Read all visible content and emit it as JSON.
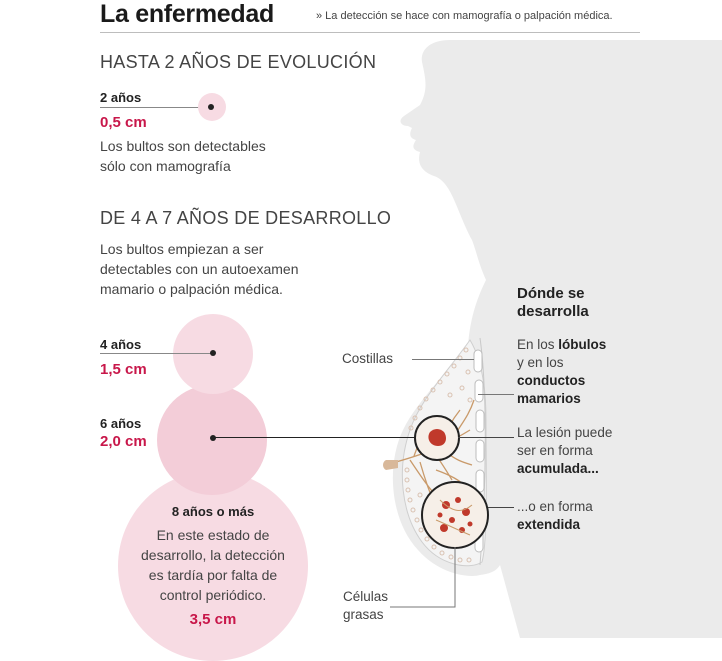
{
  "header": {
    "title": "La enfermedad",
    "subtitle": "» La detección se hace con mamografía o palpación médica."
  },
  "stage1": {
    "heading": "HASTA 2 AÑOS DE EVOLUCIÓN",
    "year": "2 años",
    "size": "0,5 cm",
    "text_line1": "Los bultos son detectables",
    "text_line2": "sólo con mamografía"
  },
  "stage2": {
    "heading": "DE 4 A 7 AÑOS DE DESARROLLO",
    "text_line1": "Los bultos empiezan a ser",
    "text_line2": "detectables con un autoexamen",
    "text_line3": "mamario o palpación médica.",
    "item4_year": "4 años",
    "item4_size": "1,5 cm",
    "item6_year": "6 años",
    "item6_size": "2,0 cm"
  },
  "stage3": {
    "year": "8 años o más",
    "text_line1": "En este estado de",
    "text_line2": "desarrollo, la detección",
    "text_line3": "es tardía por falta de",
    "text_line4": "control periódico.",
    "size": "3,5 cm"
  },
  "anatomy": {
    "costillas": "Costillas",
    "celulas_line1": "Células",
    "celulas_line2": "grasas"
  },
  "where": {
    "title_line1": "Dónde se",
    "title_line2": "desarrolla",
    "a1": "En los ",
    "a2": "lóbulos",
    "a3": "y en los",
    "a4": "conductos",
    "a5": "mamarios",
    "b1": "La lesión puede",
    "b2": "ser en forma",
    "b3": "acumulada...",
    "c1": "...o en forma",
    "c2": "extendida"
  },
  "colors": {
    "accent": "#c8174a",
    "circle_fill": "#f7dbe3",
    "silhouette": "#ebebeb"
  }
}
